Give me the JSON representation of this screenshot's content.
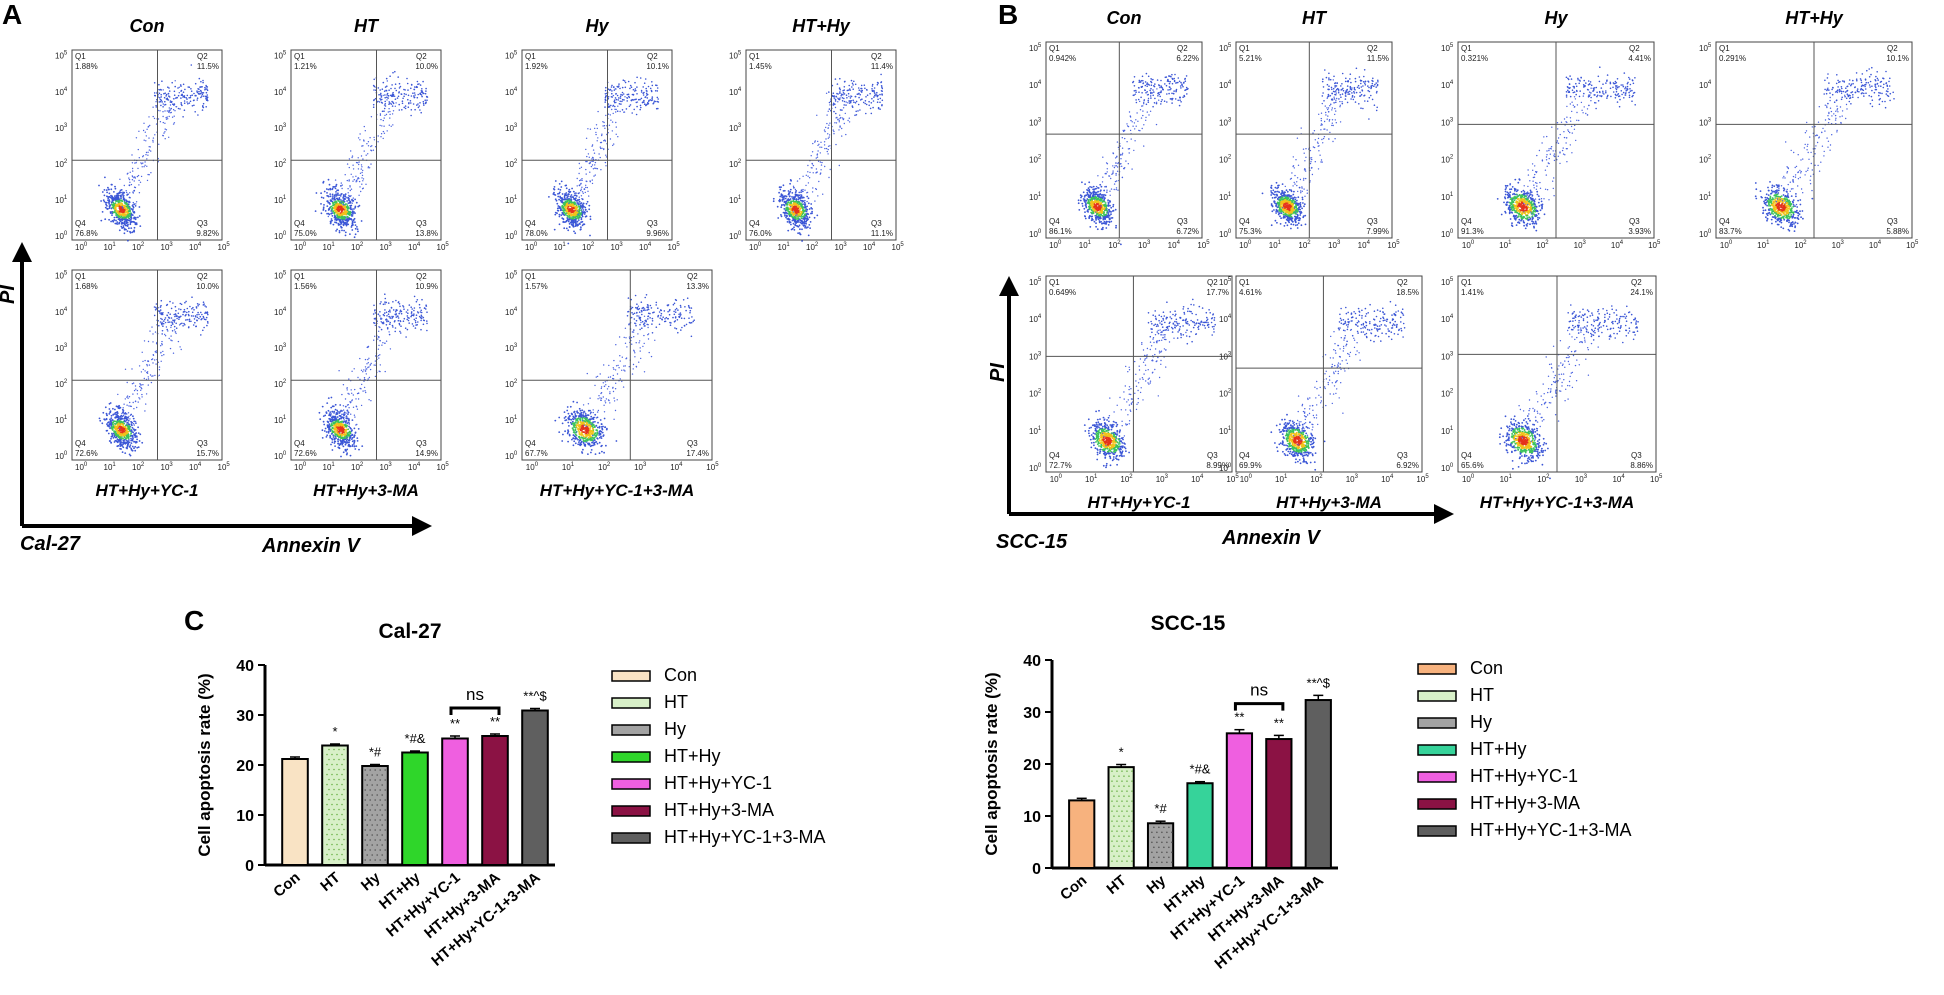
{
  "panels": {
    "a": "A",
    "b": "B",
    "c": "C"
  },
  "flow_a": {
    "axis_x": "Annexin V",
    "axis_y": "PI",
    "cell_line": "Cal-27",
    "exponents": [
      "0",
      "1",
      "2",
      "3",
      "4",
      "5"
    ],
    "plots": [
      {
        "title": "Con",
        "title_pos": "top",
        "q1": "1.88%",
        "q2": "11.5%",
        "q3": "9.82%",
        "q4": "76.8%"
      },
      {
        "title": "HT",
        "title_pos": "top",
        "q1": "1.21%",
        "q2": "10.0%",
        "q3": "13.8%",
        "q4": "75.0%"
      },
      {
        "title": "Hy",
        "title_pos": "top",
        "q1": "1.92%",
        "q2": "10.1%",
        "q3": "9.96%",
        "q4": "78.0%"
      },
      {
        "title": "HT+Hy",
        "title_pos": "top",
        "q1": "1.45%",
        "q2": "11.4%",
        "q3": "11.1%",
        "q4": "76.0%"
      },
      {
        "title": "HT+Hy+YC-1",
        "title_pos": "bottom",
        "q1": "1.68%",
        "q2": "10.0%",
        "q3": "15.7%",
        "q4": "72.6%"
      },
      {
        "title": "HT+Hy+3-MA",
        "title_pos": "bottom",
        "q1": "1.56%",
        "q2": "10.9%",
        "q3": "14.9%",
        "q4": "72.6%"
      },
      {
        "title": "HT+Hy+YC-1+3-MA",
        "title_pos": "bottom",
        "q1": "1.57%",
        "q2": "13.3%",
        "q3": "17.4%",
        "q4": "67.7%"
      }
    ]
  },
  "flow_b": {
    "axis_x": "Annexin V",
    "axis_y": "PI",
    "cell_line": "SCC-15",
    "exponents": [
      "0",
      "1",
      "2",
      "3",
      "4",
      "5"
    ],
    "plots": [
      {
        "title": "Con",
        "title_pos": "top",
        "q1": "0.942%",
        "q2": "6.22%",
        "q3": "6.72%",
        "q4": "86.1%"
      },
      {
        "title": "HT",
        "title_pos": "top",
        "q1": "5.21%",
        "q2": "11.5%",
        "q3": "7.99%",
        "q4": "75.3%"
      },
      {
        "title": "Hy",
        "title_pos": "top",
        "q1": "0.321%",
        "q2": "4.41%",
        "q3": "3.93%",
        "q4": "91.3%"
      },
      {
        "title": "HT+Hy",
        "title_pos": "top",
        "q1": "0.291%",
        "q2": "10.1%",
        "q3": "5.88%",
        "q4": "83.7%"
      },
      {
        "title": "HT+Hy+YC-1",
        "title_pos": "bottom",
        "q1": "0.649%",
        "q2": "17.7%",
        "q3": "8.99%",
        "q4": "72.7%"
      },
      {
        "title": "HT+Hy+3-MA",
        "title_pos": "bottom",
        "q1": "4.61%",
        "q2": "18.5%",
        "q3": "6.92%",
        "q4": "69.9%"
      },
      {
        "title": "HT+Hy+YC-1+3-MA",
        "title_pos": "bottom",
        "q1": "1.41%",
        "q2": "24.1%",
        "q3": "8.86%",
        "q4": "65.6%"
      }
    ]
  },
  "chart_data": [
    {
      "type": "bar",
      "title": "Cal-27",
      "ylabel": "Cell apoptosis rate (%)",
      "ylim": [
        0,
        40
      ],
      "yticks": [
        "0",
        "10",
        "20",
        "30",
        "40"
      ],
      "categories": [
        "Con",
        "HT",
        "Hy",
        "HT+Hy",
        "HT+Hy+YC-1",
        "HT+Hy+3-MA",
        "HT+Hy+YC-1+3-MA"
      ],
      "values": [
        21.2,
        23.9,
        19.8,
        22.5,
        25.3,
        25.8,
        30.9
      ],
      "errors": [
        0.4,
        0.3,
        0.3,
        0.3,
        0.5,
        0.4,
        0.4
      ],
      "annotations": [
        "",
        "*",
        "*#",
        "*#&",
        "**",
        "**",
        "**^$"
      ],
      "ns_label": "ns",
      "legend": [
        "Con",
        "HT",
        "Hy",
        "HT+Hy",
        "HT+Hy+YC-1",
        "HT+Hy+3-MA",
        "HT+Hy+YC-1+3-MA"
      ],
      "colors": [
        "#f9e3c4",
        "#d8f0c8",
        "#a3a3a3",
        "#2fd62a",
        "#ef5fe0",
        "#8b1244",
        "#5f5f5f"
      ],
      "grid": false,
      "legend_position": "right"
    },
    {
      "type": "bar",
      "title": "SCC-15",
      "ylabel": "Cell apoptosis rate (%)",
      "ylim": [
        0,
        40
      ],
      "yticks": [
        "0",
        "10",
        "20",
        "30",
        "40"
      ],
      "categories": [
        "Con",
        "HT",
        "Hy",
        "HT+Hy",
        "HT+Hy+YC-1",
        "HT+Hy+3-MA",
        "HT+Hy+YC-1+3-MA"
      ],
      "values": [
        13.0,
        19.4,
        8.6,
        16.3,
        25.9,
        24.8,
        32.3
      ],
      "errors": [
        0.4,
        0.5,
        0.4,
        0.3,
        0.7,
        0.7,
        0.9
      ],
      "annotations": [
        "",
        "*",
        "*#",
        "*#&",
        "**",
        "**",
        "**^$"
      ],
      "ns_label": "ns",
      "legend": [
        "Con",
        "HT",
        "Hy",
        "HT+Hy",
        "HT+Hy+YC-1",
        "HT+Hy+3-MA",
        "HT+Hy+YC-1+3-MA"
      ],
      "colors": [
        "#f7b27e",
        "#d8f0c8",
        "#a3a3a3",
        "#36d39a",
        "#ef5fe0",
        "#8b1244",
        "#5f5f5f"
      ],
      "grid": false,
      "legend_position": "right"
    }
  ]
}
